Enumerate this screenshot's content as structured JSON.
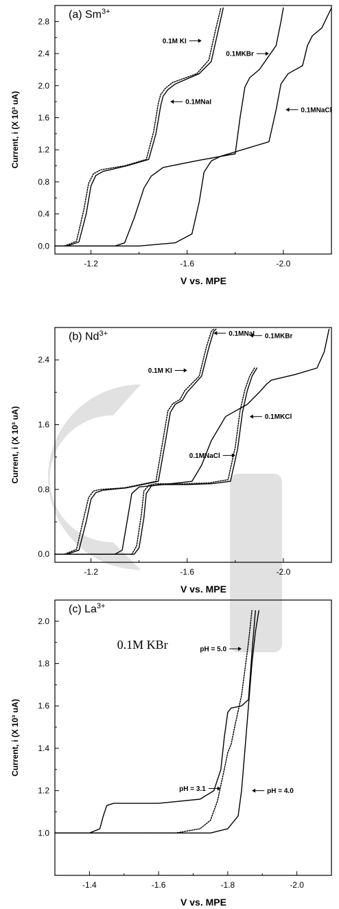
{
  "colors": {
    "background": "#ffffff",
    "line": "#000000",
    "watermark": "#c8c8c8"
  },
  "chart_data": [
    {
      "type": "line",
      "title": "(a) Sm3+",
      "title_main": "(a) Sm",
      "title_sup": "3+",
      "xlabel": "V vs. MPE",
      "ylabel": "Current, i (X 10³ uA)",
      "xlim": [
        -1.05,
        -2.2
      ],
      "ylim": [
        -0.1,
        3.0
      ],
      "xticks": [
        -1.2,
        -1.6,
        -2.0
      ],
      "yticks": [
        0.0,
        0.4,
        0.8,
        1.2,
        1.6,
        2.0,
        2.4,
        2.8
      ],
      "x_tick_labels": [
        "-1.2",
        "-1.6",
        "-2.0"
      ],
      "y_tick_labels": [
        "0.0",
        "0.4",
        "0.8",
        "1.2",
        "1.6",
        "2.0",
        "2.4",
        "2.8"
      ],
      "grid": false,
      "series": [
        {
          "name": "0.1M KI",
          "style": "solid",
          "x": [
            -1.1,
            -1.15,
            -1.18,
            -1.2,
            -1.22,
            -1.25,
            -1.35,
            -1.44,
            -1.47,
            -1.49,
            -1.5,
            -1.52,
            -1.55,
            -1.65,
            -1.7,
            -1.73,
            -1.75
          ],
          "y": [
            0.0,
            0.05,
            0.4,
            0.75,
            0.88,
            0.93,
            1.0,
            1.08,
            1.4,
            1.75,
            1.87,
            1.95,
            2.02,
            2.15,
            2.3,
            2.7,
            2.97
          ]
        },
        {
          "name": "0.1MNaI",
          "style": "dotted",
          "x": [
            -1.09,
            -1.14,
            -1.17,
            -1.19,
            -1.21,
            -1.24,
            -1.34,
            -1.43,
            -1.46,
            -1.48,
            -1.49,
            -1.51,
            -1.54,
            -1.64,
            -1.69,
            -1.72,
            -1.74
          ],
          "y": [
            0.0,
            0.06,
            0.45,
            0.78,
            0.9,
            0.95,
            1.0,
            1.08,
            1.42,
            1.78,
            1.89,
            1.97,
            2.04,
            2.15,
            2.32,
            2.72,
            2.97
          ]
        },
        {
          "name": "0.1MKBr",
          "style": "solid",
          "x": [
            -1.05,
            -1.3,
            -1.34,
            -1.38,
            -1.42,
            -1.45,
            -1.5,
            -1.65,
            -1.8,
            -1.82,
            -1.84,
            -1.86,
            -1.9,
            -1.97,
            -1.99,
            -2.0
          ],
          "y": [
            0.0,
            0.0,
            0.04,
            0.35,
            0.72,
            0.87,
            0.98,
            1.07,
            1.15,
            1.6,
            1.98,
            2.1,
            2.2,
            2.5,
            2.8,
            2.97
          ]
        },
        {
          "name": "0.1MNaCl",
          "style": "solid",
          "x": [
            -1.05,
            -1.4,
            -1.55,
            -1.62,
            -1.65,
            -1.67,
            -1.7,
            -1.74,
            -1.85,
            -1.94,
            -1.97,
            -1.99,
            -2.02,
            -2.08,
            -2.1,
            -2.12,
            -2.16,
            -2.2
          ],
          "y": [
            0.0,
            0.0,
            0.04,
            0.15,
            0.55,
            0.92,
            1.06,
            1.12,
            1.22,
            1.3,
            1.7,
            2.02,
            2.15,
            2.25,
            2.5,
            2.62,
            2.72,
            2.97
          ]
        }
      ],
      "annotations": [
        {
          "text": "0.1M KI",
          "x": -1.66,
          "y": 2.56,
          "arrow": "right"
        },
        {
          "text": "0.1MKBr",
          "x": -1.94,
          "y": 2.4,
          "arrow": "right"
        },
        {
          "text": "0.1MNaI",
          "x": -1.53,
          "y": 1.8,
          "arrow": "left"
        },
        {
          "text": "0.1MNaCl",
          "x": -2.01,
          "y": 1.7,
          "arrow": "left"
        }
      ]
    },
    {
      "type": "line",
      "title": "(b) Nd3+",
      "title_main": "(b) Nd",
      "title_sup": "3+",
      "xlabel": "V vs. MPE",
      "ylabel": "Current, i (X 10³ uA)",
      "xlim": [
        -1.05,
        -2.2
      ],
      "ylim": [
        -0.1,
        2.8
      ],
      "xticks": [
        -1.2,
        -1.6,
        -2.0
      ],
      "yticks": [
        0.0,
        0.8,
        1.6,
        2.4
      ],
      "x_tick_labels": [
        "-1.2",
        "-1.6",
        "-2.0"
      ],
      "y_tick_labels": [
        "0.0",
        "0.8",
        "1.6",
        "2.4"
      ],
      "grid": false,
      "series": [
        {
          "name": "0.1M KI",
          "style": "solid",
          "x": [
            -1.1,
            -1.15,
            -1.18,
            -1.2,
            -1.22,
            -1.25,
            -1.35,
            -1.48,
            -1.51,
            -1.53,
            -1.55,
            -1.58,
            -1.6,
            -1.66,
            -1.69,
            -1.71,
            -1.72
          ],
          "y": [
            0.0,
            0.05,
            0.4,
            0.68,
            0.76,
            0.79,
            0.82,
            0.9,
            1.4,
            1.75,
            1.85,
            1.9,
            2.0,
            2.2,
            2.55,
            2.75,
            2.78
          ]
        },
        {
          "name": "0.1MNaI",
          "style": "dotted",
          "x": [
            -1.09,
            -1.14,
            -1.17,
            -1.19,
            -1.21,
            -1.24,
            -1.34,
            -1.47,
            -1.5,
            -1.52,
            -1.54,
            -1.57,
            -1.59,
            -1.65,
            -1.68,
            -1.7,
            -1.71
          ],
          "y": [
            0.0,
            0.06,
            0.45,
            0.7,
            0.78,
            0.8,
            0.82,
            0.9,
            1.42,
            1.77,
            1.86,
            1.91,
            2.02,
            2.2,
            2.56,
            2.75,
            2.78
          ]
        },
        {
          "name": "0.1MKBr",
          "style": "solid",
          "x": [
            -1.05,
            -1.3,
            -1.33,
            -1.35,
            -1.37,
            -1.4,
            -1.5,
            -1.62,
            -1.66,
            -1.7,
            -1.76,
            -1.85,
            -1.9,
            -1.93,
            -1.95,
            -2.05,
            -2.14,
            -2.17,
            -2.19
          ],
          "y": [
            0.0,
            0.0,
            0.05,
            0.4,
            0.75,
            0.83,
            0.86,
            0.9,
            1.1,
            1.4,
            1.7,
            1.85,
            2.0,
            2.1,
            2.15,
            2.22,
            2.3,
            2.5,
            2.78
          ]
        },
        {
          "name": "0.1MNaCl",
          "style": "solid",
          "x": [
            -1.05,
            -1.38,
            -1.4,
            -1.42,
            -1.43,
            -1.45,
            -1.48,
            -1.6,
            -1.7,
            -1.78,
            -1.81,
            -1.83,
            -1.85,
            -1.87,
            -1.89
          ],
          "y": [
            0.0,
            0.0,
            0.08,
            0.45,
            0.75,
            0.84,
            0.86,
            0.86,
            0.87,
            0.9,
            1.3,
            1.75,
            2.02,
            2.2,
            2.3
          ]
        },
        {
          "name": "0.1MKCl",
          "style": "dotted",
          "x": [
            -1.05,
            -1.37,
            -1.39,
            -1.41,
            -1.42,
            -1.44,
            -1.47,
            -1.59,
            -1.69,
            -1.77,
            -1.8,
            -1.82,
            -1.84,
            -1.86,
            -1.88
          ],
          "y": [
            0.0,
            0.0,
            0.1,
            0.5,
            0.78,
            0.85,
            0.87,
            0.87,
            0.88,
            0.92,
            1.32,
            1.77,
            2.03,
            2.2,
            2.3
          ]
        }
      ],
      "annotations": [
        {
          "text": "0.1MNaI",
          "x": -1.71,
          "y": 2.73,
          "arrow": "left"
        },
        {
          "text": "0.1MKBr",
          "x": -1.86,
          "y": 2.7,
          "arrow": "left"
        },
        {
          "text": "0.1M KI",
          "x": -1.6,
          "y": 2.27,
          "arrow": "right"
        },
        {
          "text": "0.1MKCl",
          "x": -1.86,
          "y": 1.7,
          "arrow": "left"
        },
        {
          "text": "0.1MNaCl",
          "x": -1.8,
          "y": 1.22,
          "arrow": "right"
        }
      ]
    },
    {
      "type": "line",
      "title": "(c) La3+",
      "title_main": "(c) La",
      "title_sup": "3+",
      "inset_label": "0.1M  KBr",
      "xlabel": "V vs. MPE",
      "ylabel": "Current, i (X 10³ uA)",
      "xlim": [
        -1.3,
        -2.1
      ],
      "ylim": [
        0.8,
        2.1
      ],
      "xticks": [
        -1.4,
        -1.6,
        -1.8,
        -2.0
      ],
      "yticks": [
        1.0,
        1.2,
        1.4,
        1.6,
        1.8,
        2.0
      ],
      "x_tick_labels": [
        "-1.4",
        "-1.6",
        "-1.8",
        "-2.0"
      ],
      "y_tick_labels": [
        "1.0",
        "1.2",
        "1.4",
        "1.6",
        "1.8",
        "2.0"
      ],
      "grid": false,
      "series": [
        {
          "name": "pH = 3.1",
          "style": "solid",
          "x": [
            -1.3,
            -1.4,
            -1.43,
            -1.44,
            -1.45,
            -1.47,
            -1.6,
            -1.72,
            -1.76,
            -1.78,
            -1.79,
            -1.8,
            -1.81,
            -1.84,
            -1.86,
            -1.87,
            -1.88
          ],
          "y": [
            1.0,
            1.0,
            1.02,
            1.08,
            1.13,
            1.14,
            1.14,
            1.16,
            1.2,
            1.3,
            1.45,
            1.57,
            1.59,
            1.6,
            1.63,
            1.85,
            2.05
          ]
        },
        {
          "name": "pH = 5.0",
          "style": "dotted",
          "x": [
            -1.3,
            -1.65,
            -1.72,
            -1.75,
            -1.77,
            -1.79,
            -1.8,
            -1.81,
            -1.82,
            -1.84,
            -1.86,
            -1.87
          ],
          "y": [
            1.0,
            1.0,
            1.02,
            1.06,
            1.15,
            1.3,
            1.38,
            1.42,
            1.5,
            1.65,
            1.9,
            2.05
          ]
        },
        {
          "name": "pH = 4.0",
          "style": "solid",
          "x": [
            -1.3,
            -1.75,
            -1.8,
            -1.83,
            -1.84,
            -1.85,
            -1.86,
            -1.87,
            -1.88,
            -1.89
          ],
          "y": [
            1.0,
            1.0,
            1.02,
            1.08,
            1.2,
            1.4,
            1.6,
            1.8,
            1.95,
            2.05
          ]
        }
      ],
      "annotations": [
        {
          "text": "pH = 5.0",
          "x": -1.84,
          "y": 1.87,
          "arrow": "right"
        },
        {
          "text": "pH = 3.1",
          "x": -1.78,
          "y": 1.21,
          "arrow": "right"
        },
        {
          "text": "pH = 4.0",
          "x": -1.87,
          "y": 1.2,
          "arrow": "left"
        }
      ]
    }
  ]
}
